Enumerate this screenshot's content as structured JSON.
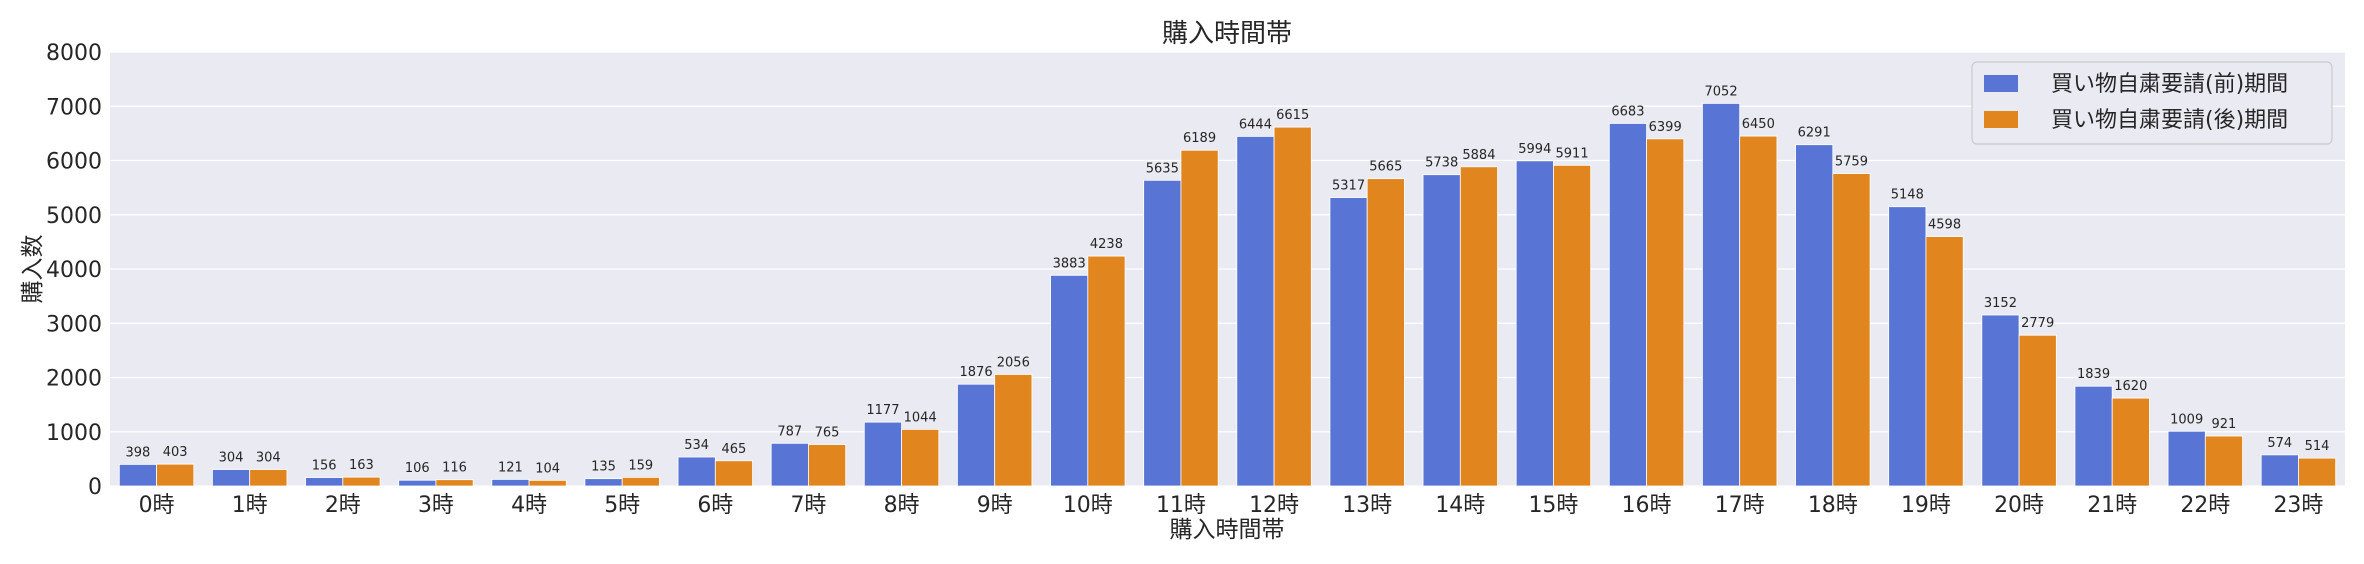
{
  "chart_data": {
    "type": "bar",
    "title": "購入時間帯",
    "xlabel": "購入時間帯",
    "ylabel": "購入数",
    "ylim": [
      0,
      8000
    ],
    "yticks": [
      0,
      1000,
      2000,
      3000,
      4000,
      5000,
      6000,
      7000,
      8000
    ],
    "grid": true,
    "legend_position": "top-right",
    "categories": [
      "0時",
      "1時",
      "2時",
      "3時",
      "4時",
      "5時",
      "6時",
      "7時",
      "8時",
      "9時",
      "10時",
      "11時",
      "12時",
      "13時",
      "14時",
      "15時",
      "16時",
      "17時",
      "18時",
      "19時",
      "20時",
      "21時",
      "22時",
      "23時"
    ],
    "series": [
      {
        "name": "買い物自粛要請(前)期間",
        "color": "#5875d5",
        "values": [
          398,
          304,
          156,
          106,
          121,
          135,
          534,
          787,
          1177,
          1876,
          3883,
          5635,
          6444,
          5317,
          5738,
          5994,
          6683,
          7052,
          6291,
          5148,
          3152,
          1839,
          1009,
          574
        ]
      },
      {
        "name": "買い物自粛要請(後)期間",
        "color": "#e1861f",
        "values": [
          403,
          304,
          163,
          116,
          104,
          159,
          465,
          765,
          1044,
          2056,
          4238,
          6189,
          6615,
          5665,
          5884,
          5911,
          6399,
          6450,
          5759,
          4598,
          2779,
          1620,
          921,
          514
        ]
      }
    ]
  }
}
